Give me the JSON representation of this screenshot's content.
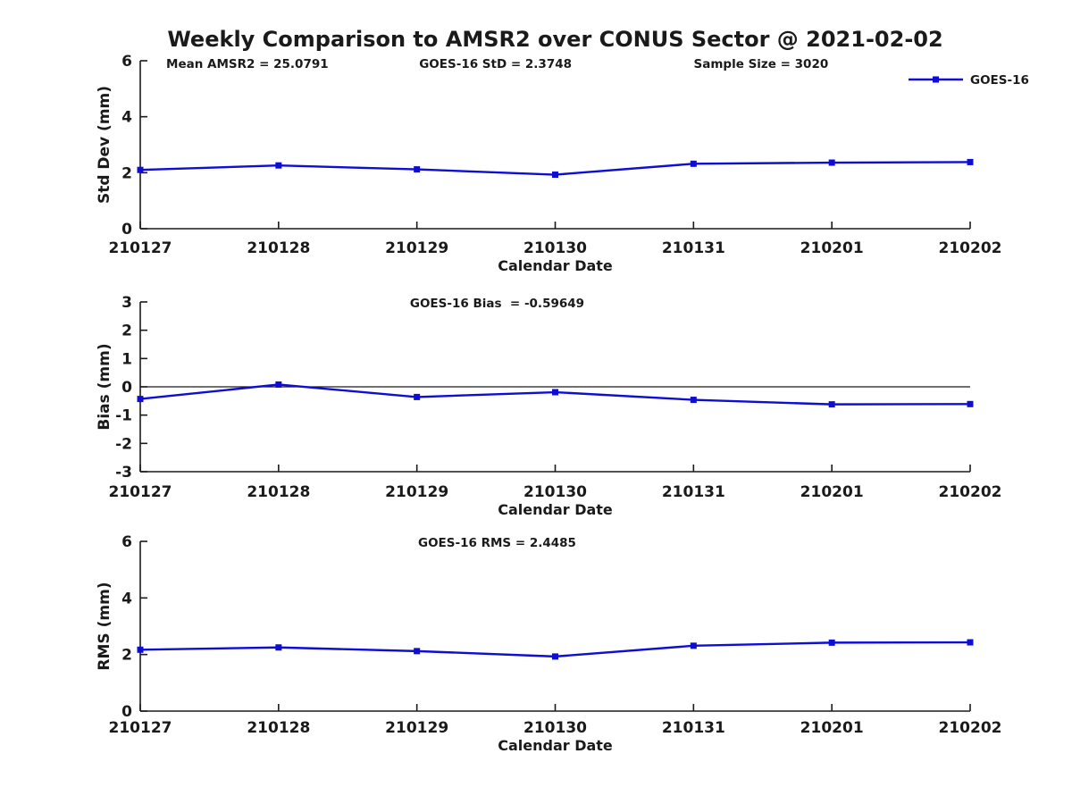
{
  "title": "Weekly Comparison to AMSR2 over CONUS Sector @ 2021-02-02",
  "colors": {
    "series": "#0d0dd6",
    "axis": "#1a1a1a",
    "text": "#1a1a1a",
    "background": "#ffffff"
  },
  "legend_label": "GOES-16",
  "chart_data": [
    {
      "type": "line",
      "id": "std-dev",
      "annotations": [
        "Mean AMSR2 = 25.0791",
        "GOES-16 StD = 2.3748",
        "Sample Size = 3020"
      ],
      "categories": [
        "210127",
        "210128",
        "210129",
        "210130",
        "210131",
        "210201",
        "210202"
      ],
      "series": [
        {
          "name": "GOES-16",
          "values": [
            2.1,
            2.26,
            2.12,
            1.93,
            2.32,
            2.36,
            2.38
          ]
        }
      ],
      "xlabel": "Calendar Date",
      "ylabel": "Std Dev (mm)",
      "ylim": [
        0,
        6
      ],
      "yticks": [
        0,
        2,
        4,
        6
      ],
      "grid": false,
      "legend": {
        "label": "GOES-16",
        "position": "top-right"
      },
      "marker": "square"
    },
    {
      "type": "line",
      "id": "bias",
      "title": "GOES-16 Bias  = -0.59649",
      "categories": [
        "210127",
        "210128",
        "210129",
        "210130",
        "210131",
        "210201",
        "210202"
      ],
      "series": [
        {
          "name": "GOES-16",
          "values": [
            -0.43,
            0.08,
            -0.36,
            -0.19,
            -0.46,
            -0.62,
            -0.61
          ]
        }
      ],
      "xlabel": "Calendar Date",
      "ylabel": "Bias (mm)",
      "ylim": [
        -3,
        3
      ],
      "yticks": [
        -3,
        -2,
        -1,
        0,
        1,
        2,
        3
      ],
      "zero_line": true,
      "grid": false,
      "marker": "square"
    },
    {
      "type": "line",
      "id": "rms",
      "title": "GOES-16 RMS = 2.4485",
      "categories": [
        "210127",
        "210128",
        "210129",
        "210130",
        "210131",
        "210201",
        "210202"
      ],
      "series": [
        {
          "name": "GOES-16",
          "values": [
            2.17,
            2.25,
            2.12,
            1.93,
            2.31,
            2.42,
            2.43
          ]
        }
      ],
      "xlabel": "Calendar Date",
      "ylabel": "RMS (mm)",
      "ylim": [
        0,
        6
      ],
      "yticks": [
        0,
        2,
        4,
        6
      ],
      "grid": false,
      "marker": "square"
    }
  ]
}
